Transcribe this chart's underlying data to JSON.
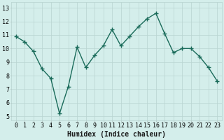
{
  "x": [
    0,
    1,
    2,
    3,
    4,
    5,
    6,
    7,
    8,
    9,
    10,
    11,
    12,
    13,
    14,
    15,
    16,
    17,
    18,
    19,
    20,
    21,
    22,
    23
  ],
  "y": [
    10.9,
    10.5,
    9.8,
    8.5,
    7.8,
    5.2,
    7.2,
    10.1,
    8.6,
    9.5,
    10.2,
    11.4,
    10.2,
    10.9,
    11.6,
    12.2,
    12.6,
    11.1,
    9.7,
    10.0,
    10.0,
    9.4,
    8.6,
    7.6
  ],
  "line_color": "#1a6b5a",
  "marker": "+",
  "marker_size": 4,
  "marker_linewidth": 1.0,
  "linewidth": 1.0,
  "bg_color": "#d4eeeb",
  "grid_color": "#b8d4d0",
  "xlabel": "Humidex (Indice chaleur)",
  "xlabel_fontsize": 7,
  "ylabel_ticks": [
    5,
    6,
    7,
    8,
    9,
    10,
    11,
    12,
    13
  ],
  "xlim": [
    -0.5,
    23.5
  ],
  "ylim": [
    4.7,
    13.4
  ],
  "xtick_labels": [
    "0",
    "1",
    "2",
    "3",
    "4",
    "5",
    "6",
    "7",
    "8",
    "9",
    "10",
    "11",
    "12",
    "13",
    "14",
    "15",
    "16",
    "17",
    "18",
    "19",
    "20",
    "21",
    "22",
    "23"
  ],
  "tick_fontsize": 6.0
}
